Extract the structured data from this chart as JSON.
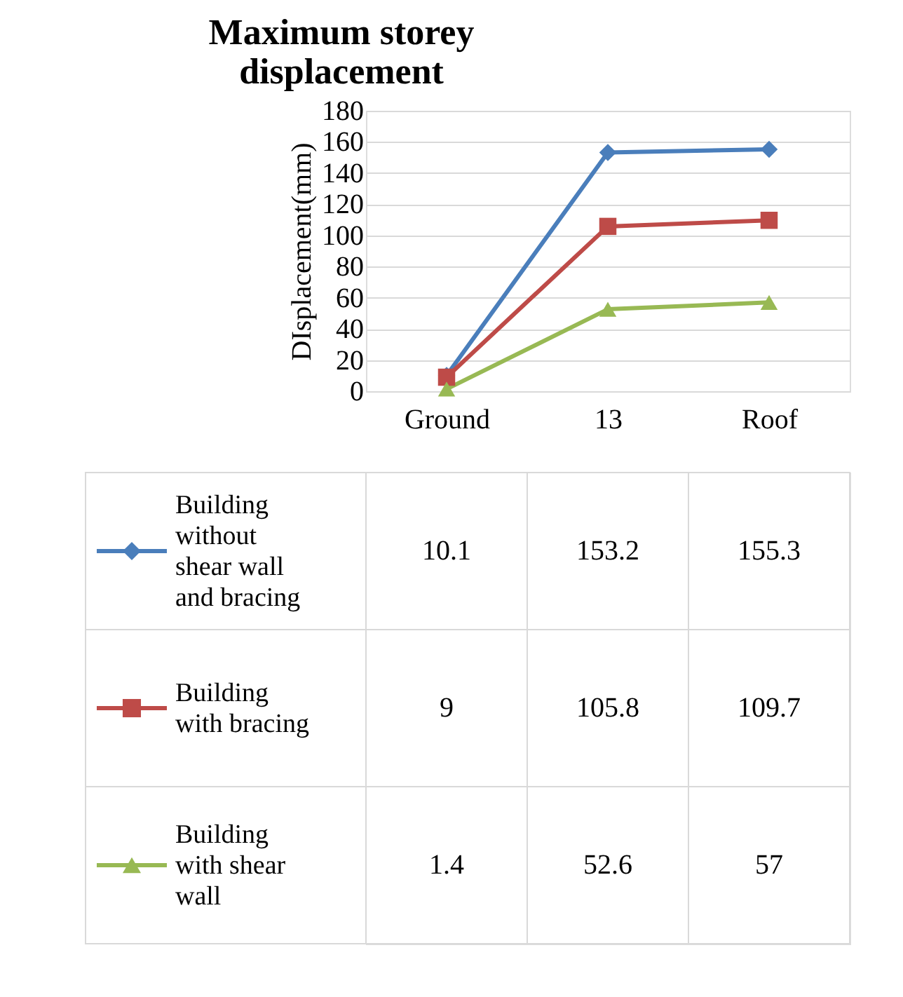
{
  "chart_data": {
    "type": "line",
    "title": "Maximum storey displacement",
    "ylabel": "DIsplacement(mm)",
    "categories": [
      "Ground",
      "13",
      "Roof"
    ],
    "series": [
      {
        "name": "Building without shear wall and bracing",
        "color": "#4a7ebb",
        "marker": "diamond",
        "values": [
          10.1,
          153.2,
          155.3
        ]
      },
      {
        "name": "Building with bracing",
        "color": "#be4b48",
        "marker": "square",
        "values": [
          9,
          105.8,
          109.7
        ]
      },
      {
        "name": "Building with shear wall",
        "color": "#98b954",
        "marker": "triangle",
        "values": [
          1.4,
          52.6,
          57
        ]
      }
    ],
    "ylim": [
      0,
      180
    ],
    "yticks": [
      0,
      20,
      40,
      60,
      80,
      100,
      120,
      140,
      160,
      180
    ],
    "grid": "y",
    "data_labels": true,
    "legend": "bottom"
  }
}
